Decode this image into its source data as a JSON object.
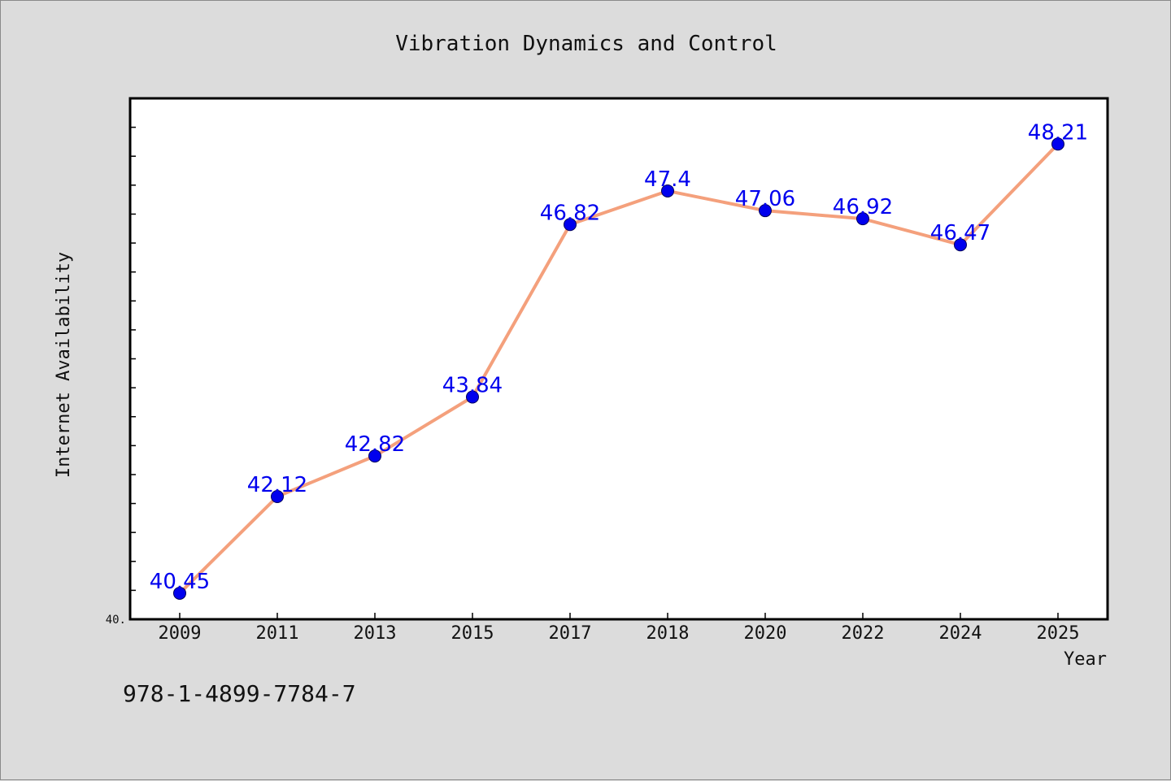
{
  "chart_data": {
    "type": "line",
    "title": "Vibration Dynamics and Control",
    "xlabel": "Year",
    "ylabel": "Internet Availability",
    "categories": [
      "2009",
      "2011",
      "2013",
      "2015",
      "2017",
      "2018",
      "2020",
      "2022",
      "2024",
      "2025"
    ],
    "series": [
      {
        "values": [
          40.45,
          42.12,
          42.82,
          43.84,
          46.82,
          47.4,
          47.06,
          46.92,
          46.47,
          48.21
        ],
        "labels": [
          "40.45",
          "42.12",
          "42.82",
          "43.84",
          "46.82",
          "47.4",
          "47.06",
          "46.92",
          "46.47",
          "48.21"
        ],
        "line_color": "#f4a07c",
        "marker_color": "#0000ee",
        "label_color": "#0000ee"
      }
    ],
    "ylim": [
      40.0,
      49.0
    ],
    "y_tick_label": "40.",
    "grid": false,
    "legend": "none"
  },
  "footer": {
    "isbn": "978-1-4899-7784-7"
  }
}
